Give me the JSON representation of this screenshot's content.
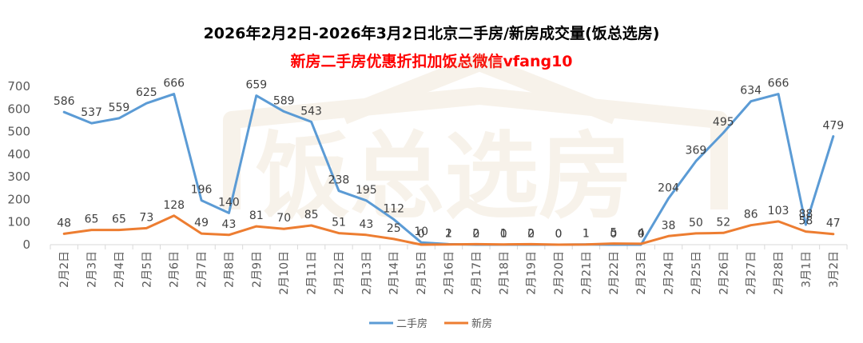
{
  "chart_data": {
    "type": "line",
    "title": "2026年2月2日-2026年3月2日北京二手房/新房成交量(饭总选房)",
    "subtitle": "新房二手房优惠折扣加饭总微信vfang10",
    "watermark": "饭总选房",
    "categories": [
      "2月2日",
      "2月3日",
      "2月4日",
      "2月5日",
      "2月6日",
      "2月7日",
      "2月8日",
      "2月9日",
      "2月10日",
      "2月11日",
      "2月12日",
      "2月13日",
      "2月14日",
      "2月15日",
      "2月16日",
      "2月17日",
      "2月18日",
      "2月19日",
      "2月20日",
      "2月21日",
      "2月22日",
      "2月23日",
      "2月24日",
      "2月25日",
      "2月26日",
      "2月27日",
      "2月28日",
      "3月1日",
      "3月2日"
    ],
    "ylim": [
      0,
      700
    ],
    "yticks": [
      0,
      100,
      200,
      300,
      400,
      500,
      600,
      700
    ],
    "grid": false,
    "legend_position": "bottom",
    "series": [
      {
        "name": "二手房",
        "color": "#5b9bd5",
        "values": [
          586,
          537,
          559,
          625,
          666,
          196,
          140,
          659,
          589,
          543,
          238,
          195,
          112,
          10,
          2,
          0,
          0,
          0,
          0,
          1,
          0,
          0,
          204,
          369,
          495,
          634,
          666,
          88,
          479
        ]
      },
      {
        "name": "新房",
        "color": "#ed7d31",
        "values": [
          48,
          65,
          65,
          73,
          128,
          49,
          43,
          81,
          70,
          85,
          51,
          43,
          25,
          0,
          1,
          2,
          1,
          2,
          0,
          1,
          5,
          4,
          38,
          50,
          52,
          86,
          103,
          58,
          47
        ]
      }
    ]
  }
}
